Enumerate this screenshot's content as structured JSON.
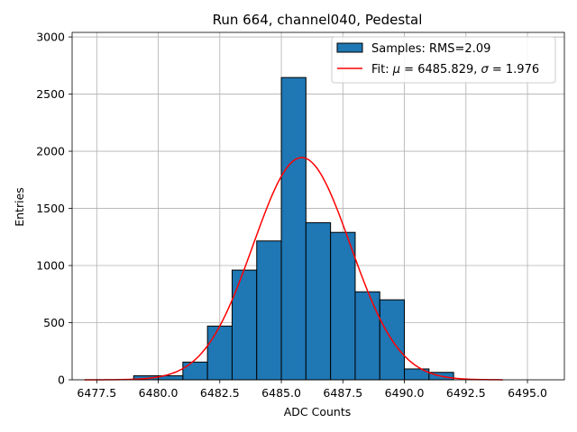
{
  "chart_data": {
    "type": "bar",
    "title": "Run 664, channel040, Pedestal",
    "xlabel": "ADC Counts",
    "ylabel": "Entries",
    "xlim": [
      6476.5,
      6496.5
    ],
    "ylim": [
      0,
      3040
    ],
    "grid": true,
    "x_ticks": [
      6477.5,
      6480.0,
      6482.5,
      6485.0,
      6487.5,
      6490.0,
      6492.5,
      6495.0
    ],
    "x_tick_labels": [
      "6477.5",
      "6480.0",
      "6482.5",
      "6485.0",
      "6487.5",
      "6490.0",
      "6492.5",
      "6495.0"
    ],
    "y_ticks": [
      0,
      500,
      1000,
      1500,
      2000,
      2500,
      3000
    ],
    "y_tick_labels": [
      "0",
      "500",
      "1000",
      "1500",
      "2000",
      "2500",
      "3000"
    ],
    "legend_position": "top-right",
    "bar_color": "#1f77b4",
    "fit_color": "#ff0000",
    "series": [
      {
        "name": "Samples: RMS=2.09",
        "kind": "histogram",
        "bins": [
          {
            "left": 6479,
            "right": 6480,
            "count": 35
          },
          {
            "left": 6480,
            "right": 6481,
            "count": 35
          },
          {
            "left": 6481,
            "right": 6482,
            "count": 155
          },
          {
            "left": 6482,
            "right": 6483,
            "count": 470
          },
          {
            "left": 6483,
            "right": 6484,
            "count": 960
          },
          {
            "left": 6484,
            "right": 6485,
            "count": 1215
          },
          {
            "left": 6485,
            "right": 6486,
            "count": 2645
          },
          {
            "left": 6486,
            "right": 6487,
            "count": 1375
          },
          {
            "left": 6487,
            "right": 6488,
            "count": 1290
          },
          {
            "left": 6488,
            "right": 6489,
            "count": 770
          },
          {
            "left": 6489,
            "right": 6490,
            "count": 700
          },
          {
            "left": 6490,
            "right": 6491,
            "count": 95
          },
          {
            "left": 6491,
            "right": 6492,
            "count": 65
          }
        ]
      },
      {
        "name": "Fit: μ = 6485.829, σ = 1.976",
        "kind": "gaussian",
        "mu": 6485.829,
        "sigma": 1.976,
        "amplitude": 1945,
        "x_range": [
          6477,
          6494
        ]
      }
    ],
    "legend": {
      "hist_prefix": "Samples: RMS=2.09",
      "fit_prefix": "Fit: ",
      "mu_symbol": "μ",
      "mu_text": " = 6485.829, ",
      "sigma_symbol": "σ",
      "sigma_text": " = 1.976"
    }
  }
}
